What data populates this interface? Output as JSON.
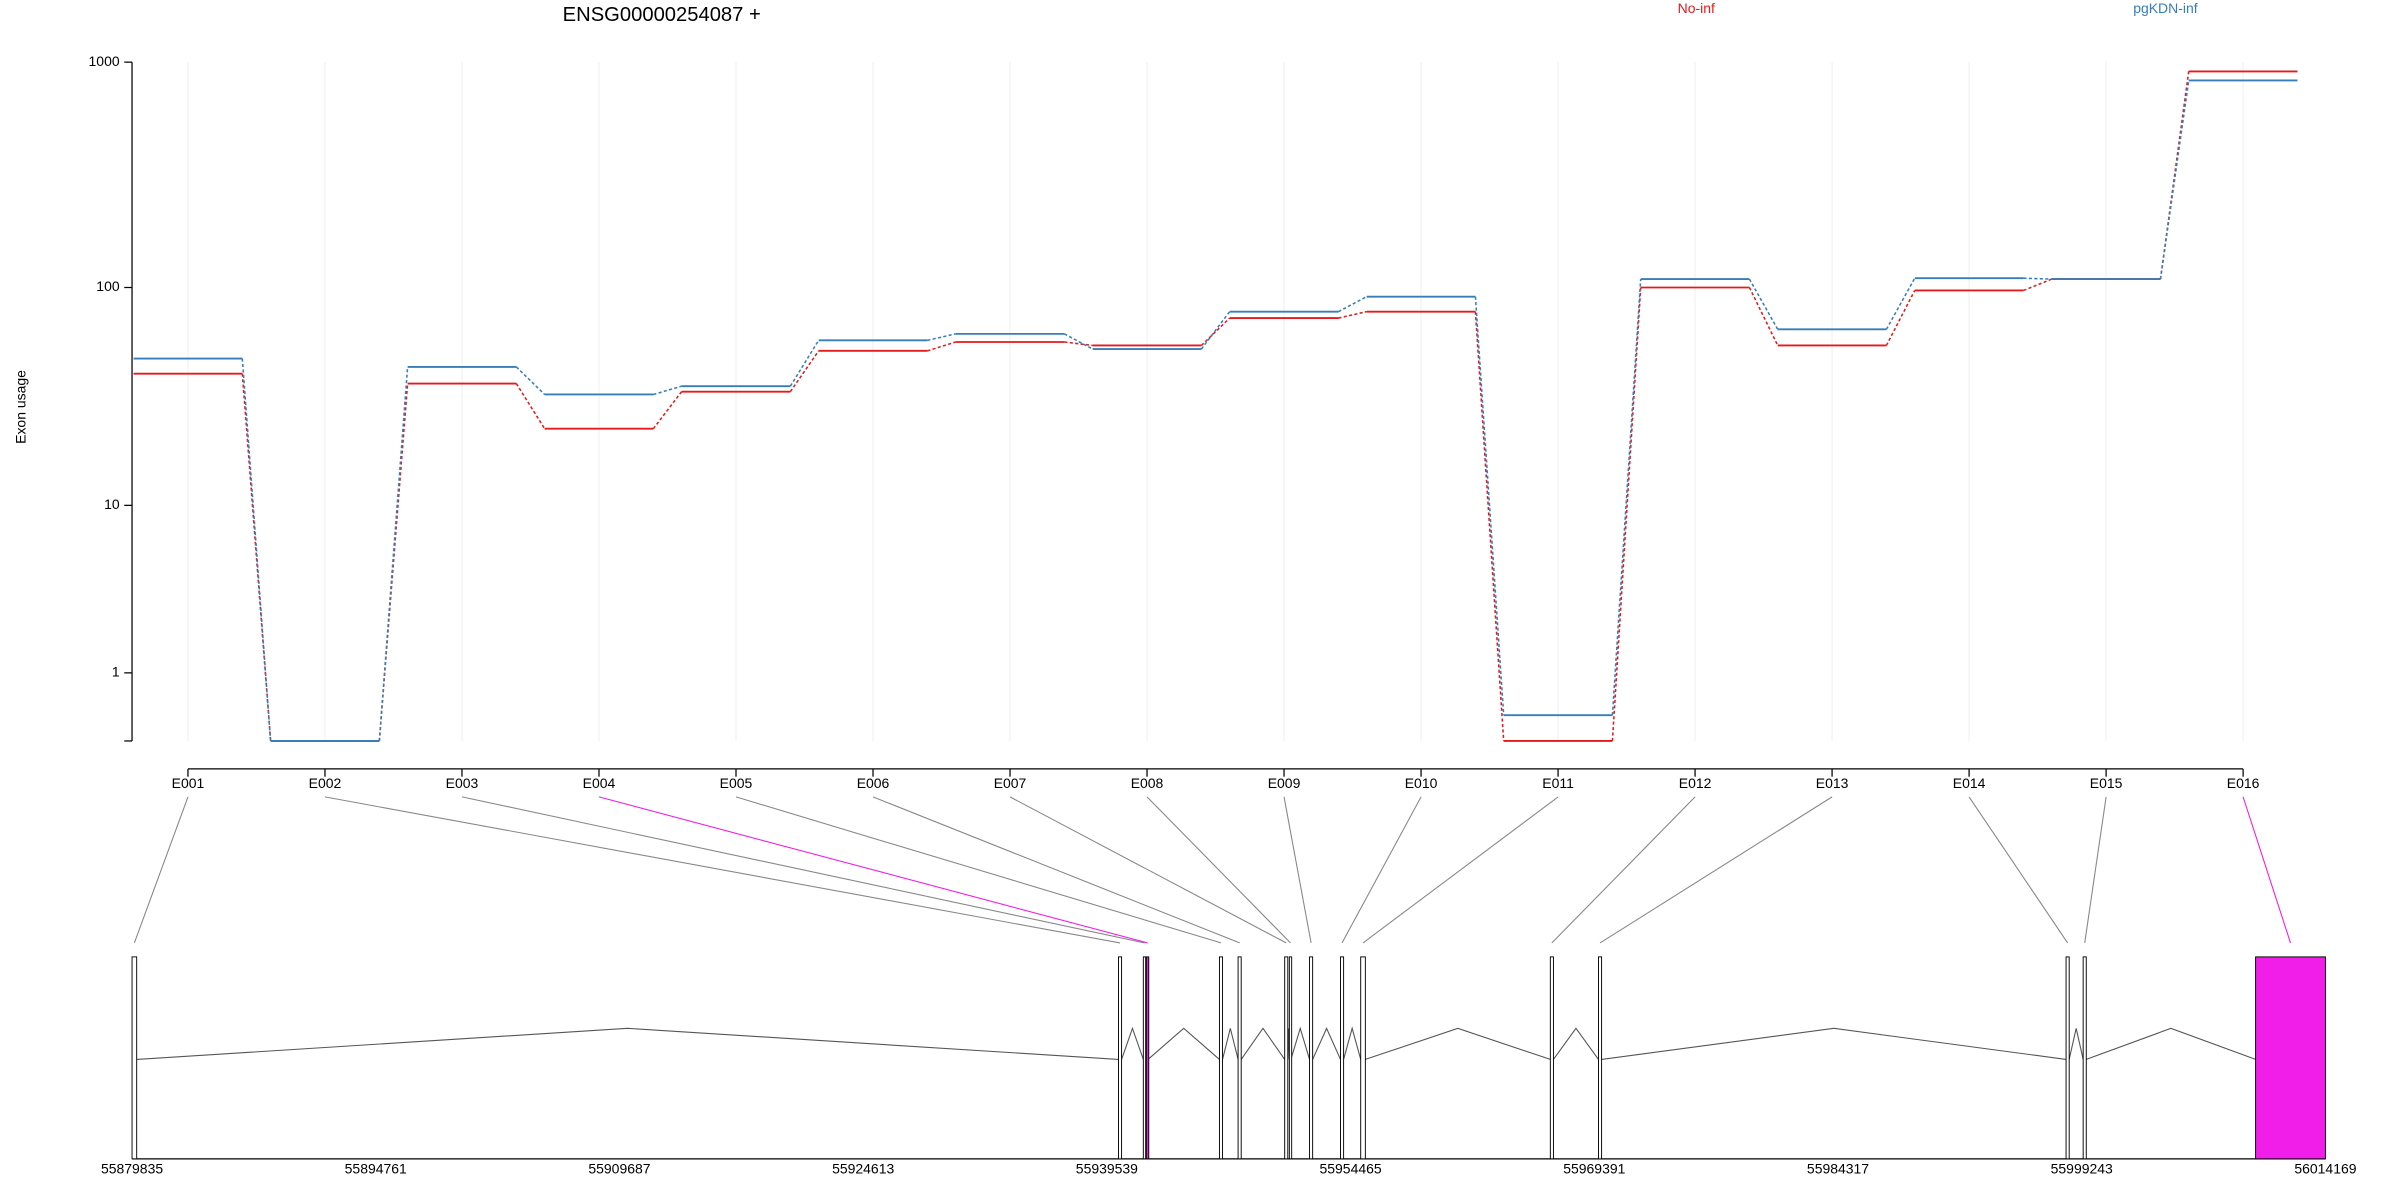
{
  "chart_data": [
    {
      "type": "step-line",
      "title": "ENSG00000254087 +",
      "y_label": "Exon usage",
      "categories": [
        "E001",
        "E002",
        "E003",
        "E004",
        "E005",
        "E006",
        "E007",
        "E008",
        "E009",
        "E010",
        "E011",
        "E012",
        "E013",
        "E014",
        "E015",
        "E016"
      ],
      "series": [
        {
          "name": "No-inf",
          "color": "#e41a1c",
          "values": [
            41,
            0,
            37,
            23,
            34,
            52,
            57,
            55,
            73,
            78,
            0,
            100,
            55,
            97,
            109,
            910
          ]
        },
        {
          "name": "pgKDN-inf",
          "color": "#377eb8",
          "values": [
            48,
            0,
            44,
            33,
            36,
            58,
            62,
            53,
            78,
            91,
            0.3,
            109,
            65,
            110,
            109,
            830
          ]
        }
      ],
      "yscale": "log1p",
      "ylim": [
        0,
        1000
      ],
      "yticks": [
        1,
        10,
        100,
        1000
      ],
      "grid": true
    },
    {
      "type": "gene-model",
      "exon_starts": [
        55879835,
        55940249,
        55941771,
        55941961,
        55946433,
        55947575,
        55950429,
        55950714,
        55951951,
        55953847,
        55955084,
        55966698,
        55969647,
        55998284,
        55999331,
        56009891
      ],
      "exon_ends": [
        55880120,
        55940439,
        55941866,
        55942057,
        55946623,
        55947765,
        55950619,
        55950809,
        55952141,
        55954037,
        55955369,
        55966888,
        55969837,
        55998475,
        55999521,
        56014169
      ],
      "highlighted": [
        3,
        15
      ],
      "highlight_color": "#f01ee8",
      "xlim": [
        55879835,
        56014169
      ],
      "xticks": [
        55879835,
        55894761,
        55909687,
        55924613,
        55939539,
        55954465,
        55969391,
        55984317,
        55999243,
        56014169
      ]
    }
  ]
}
